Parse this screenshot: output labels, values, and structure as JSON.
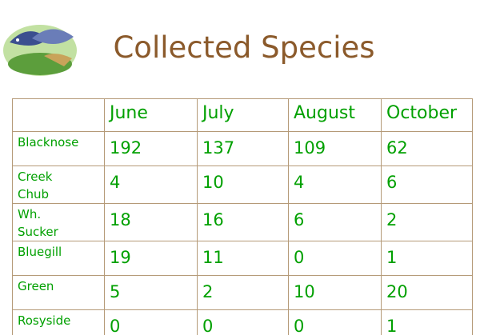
{
  "header": {
    "title": "Collected Species"
  },
  "table": {
    "columns": [
      "June",
      "July",
      "August",
      "October"
    ],
    "rows": [
      {
        "label": "Blacknose",
        "values": [
          192,
          137,
          109,
          62
        ]
      },
      {
        "label": "Creek Chub",
        "values": [
          4,
          10,
          4,
          6
        ]
      },
      {
        "label": "Wh. Sucker",
        "values": [
          18,
          16,
          6,
          2
        ]
      },
      {
        "label": "Bluegill",
        "values": [
          19,
          11,
          0,
          1
        ]
      },
      {
        "label": "Green",
        "values": [
          5,
          2,
          10,
          20
        ]
      },
      {
        "label": "Rosyside",
        "values": [
          0,
          0,
          0,
          1
        ]
      }
    ]
  }
}
